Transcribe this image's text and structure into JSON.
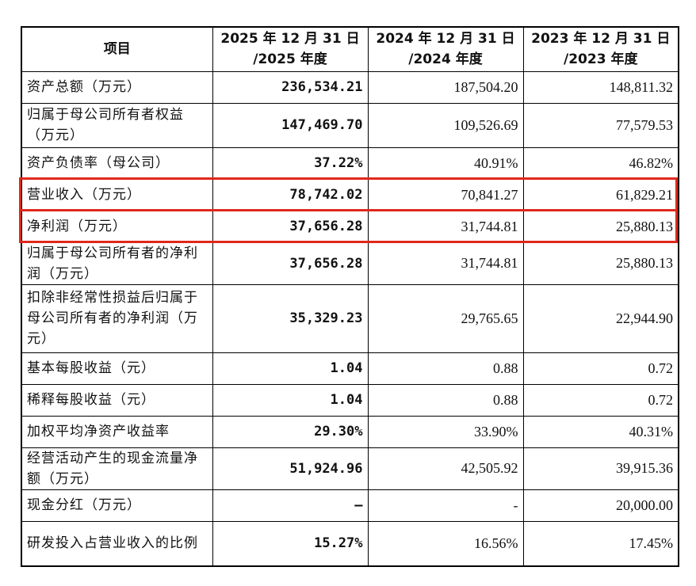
{
  "table": {
    "headers": [
      "项目",
      "2025 年 12 月 31 日/2025 年度",
      "2024 年 12 月 31 日/2024 年度",
      "2023 年 12 月 31 日/2023 年度"
    ],
    "header_lines": [
      [
        "项目"
      ],
      [
        "2025 年 12 月 31 日",
        "/2025 年度"
      ],
      [
        "2024 年 12 月 31 日",
        "/2024 年度"
      ],
      [
        "2023 年 12 月 31 日",
        "/2023 年度"
      ]
    ],
    "rows": [
      {
        "label": "资产总额（万元）",
        "v2025": "236,534.21",
        "v2024": "187,504.20",
        "v2023": "148,811.32",
        "highlight": false
      },
      {
        "label": "归属于母公司所有者权益（万元）",
        "v2025": "147,469.70",
        "v2024": "109,526.69",
        "v2023": "77,579.53",
        "highlight": false
      },
      {
        "label": "资产负债率（母公司）",
        "v2025": "37.22%",
        "v2024": "40.91%",
        "v2023": "46.82%",
        "highlight": false
      },
      {
        "label": "营业收入（万元）",
        "v2025": "78,742.02",
        "v2024": "70,841.27",
        "v2023": "61,829.21",
        "highlight": true
      },
      {
        "label": "净利润（万元）",
        "v2025": "37,656.28",
        "v2024": "31,744.81",
        "v2023": "25,880.13",
        "highlight": true
      },
      {
        "label": "归属于母公司所有者的净利润（万元）",
        "v2025": "37,656.28",
        "v2024": "31,744.81",
        "v2023": "25,880.13",
        "highlight": false
      },
      {
        "label": "扣除非经常性损益后归属于母公司所有者的净利润（万元）",
        "v2025": "35,329.23",
        "v2024": "29,765.65",
        "v2023": "22,944.90",
        "highlight": false
      },
      {
        "label": "基本每股收益（元）",
        "v2025": "1.04",
        "v2024": "0.88",
        "v2023": "0.72",
        "highlight": false
      },
      {
        "label": "稀释每股收益（元）",
        "v2025": "1.04",
        "v2024": "0.88",
        "v2023": "0.72",
        "highlight": false
      },
      {
        "label": "加权平均净资产收益率",
        "v2025": "29.30%",
        "v2024": "33.90%",
        "v2023": "40.31%",
        "highlight": false
      },
      {
        "label": "经营活动产生的现金流量净额（万元）",
        "v2025": "51,924.96",
        "v2024": "42,505.92",
        "v2023": "39,915.36",
        "highlight": false
      },
      {
        "label": "现金分红（万元）",
        "v2025": "–",
        "v2024": "-",
        "v2023": "20,000.00",
        "highlight": false
      },
      {
        "label": "研发投入占营业收入的比例",
        "v2025": "15.27%",
        "v2024": "16.56%",
        "v2023": "17.45%",
        "highlight": false
      }
    ]
  },
  "highlight_color": "#e0281c"
}
